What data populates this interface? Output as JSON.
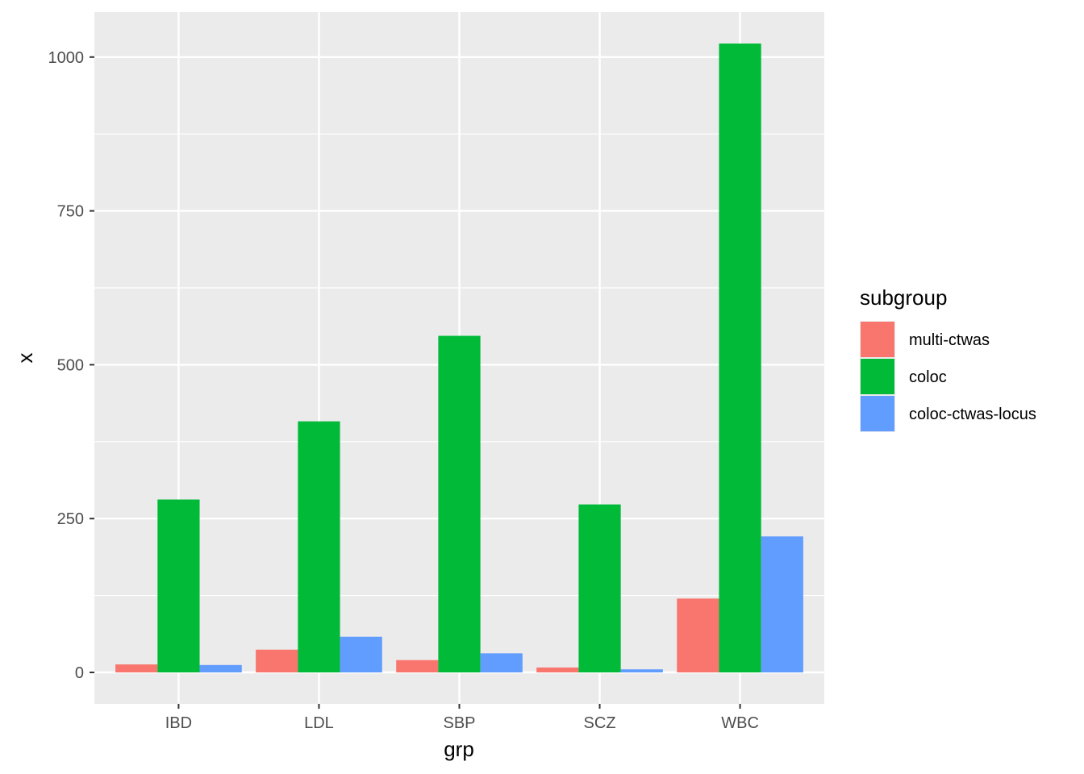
{
  "chart_data": {
    "type": "bar",
    "title": "",
    "xlabel": "grp",
    "ylabel": "x",
    "categories": [
      "IBD",
      "LDL",
      "SBP",
      "SCZ",
      "WBC"
    ],
    "series": [
      {
        "name": "multi-ctwas",
        "color": "#F8766D",
        "values": [
          13,
          37,
          20,
          8,
          120
        ]
      },
      {
        "name": "coloc",
        "color": "#00BA38",
        "values": [
          281,
          408,
          547,
          273,
          1022
        ]
      },
      {
        "name": "coloc-ctwas-locus",
        "color": "#619CFF",
        "values": [
          12,
          58,
          31,
          5,
          221
        ]
      }
    ],
    "ylim": [
      -51.1,
      1073.1
    ],
    "yticks": [
      0,
      250,
      500,
      750,
      1000
    ],
    "ytick_labels": [
      "0",
      "250",
      "500",
      "750",
      "1000"
    ],
    "grid": true,
    "panel_background": "#EBEBEB",
    "legend": {
      "title": "subgroup",
      "placement": "right"
    }
  }
}
